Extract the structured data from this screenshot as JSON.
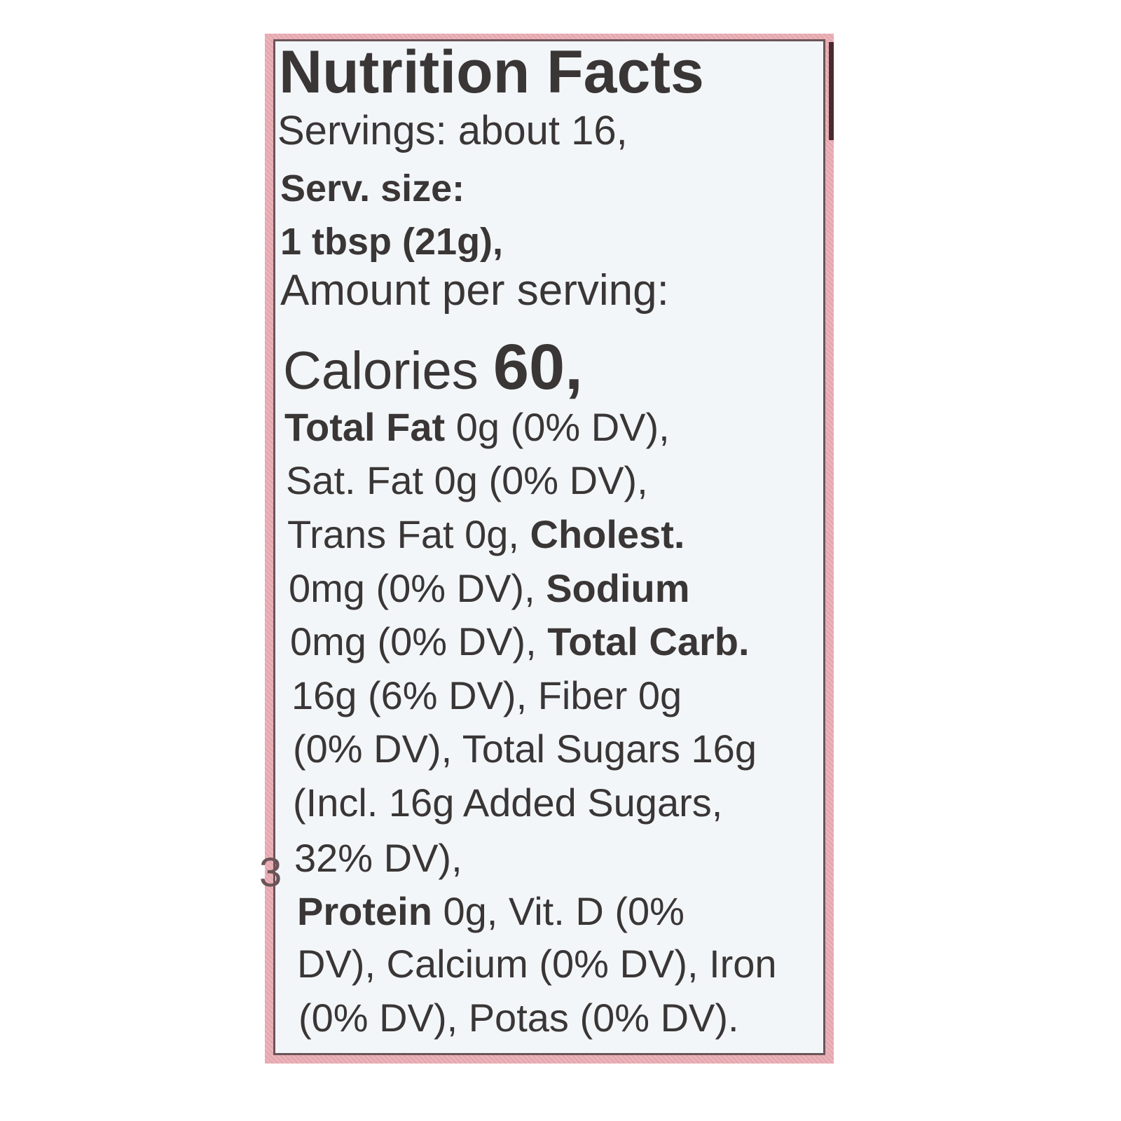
{
  "label": {
    "edge_fragment": "3",
    "lines": [
      {
        "segments": [
          {
            "text": "Nutrition Facts",
            "style": "bold"
          }
        ]
      },
      {
        "segments": [
          {
            "text": "Servings: about 16,",
            "style": "regular"
          }
        ]
      },
      {
        "segments": [
          {
            "text": "Serv. size:",
            "style": "bold"
          }
        ]
      },
      {
        "segments": [
          {
            "text": "1 tbsp (21g),",
            "style": "bold"
          }
        ]
      },
      {
        "segments": [
          {
            "text": "Amount per serving:",
            "style": "regular"
          }
        ]
      },
      {
        "segments": [
          {
            "text": "Calories",
            "style": "regular"
          },
          {
            "text": "60,",
            "style": "bold"
          }
        ]
      },
      {
        "segments": [
          {
            "text": "Total Fat",
            "style": "bold"
          },
          {
            "text": "0g (0% DV),",
            "style": "regular"
          }
        ]
      },
      {
        "segments": [
          {
            "text": "Sat. Fat 0g (0% DV),",
            "style": "regular"
          }
        ]
      },
      {
        "segments": [
          {
            "text": "Trans Fat 0g,",
            "style": "regular"
          },
          {
            "text": "Cholest.",
            "style": "bold"
          }
        ]
      },
      {
        "segments": [
          {
            "text": "0mg (0% DV),",
            "style": "regular"
          },
          {
            "text": "Sodium",
            "style": "bold"
          }
        ]
      },
      {
        "segments": [
          {
            "text": "0mg (0% DV),",
            "style": "regular"
          },
          {
            "text": "Total Carb.",
            "style": "bold"
          }
        ]
      },
      {
        "segments": [
          {
            "text": "16g (6% DV), Fiber 0g",
            "style": "regular"
          }
        ]
      },
      {
        "segments": [
          {
            "text": "(0% DV), Total Sugars 16g",
            "style": "regular"
          }
        ]
      },
      {
        "segments": [
          {
            "text": "(Incl. 16g Added Sugars,",
            "style": "regular"
          }
        ]
      },
      {
        "segments": [
          {
            "text": "32% DV),",
            "style": "regular"
          }
        ]
      },
      {
        "segments": [
          {
            "text": "Protein",
            "style": "bold"
          },
          {
            "text": "0g, Vit. D (0%",
            "style": "regular"
          }
        ]
      },
      {
        "segments": [
          {
            "text": "DV), Calcium (0% DV), Iron",
            "style": "regular"
          }
        ]
      },
      {
        "segments": [
          {
            "text": "(0% DV), Potas (0% DV).",
            "style": "regular"
          }
        ]
      }
    ]
  }
}
